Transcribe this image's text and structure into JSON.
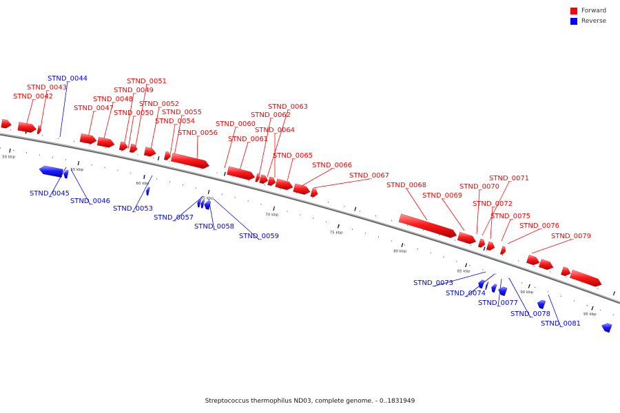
{
  "legend": [
    {
      "label": "Forward",
      "color": "#ff0000"
    },
    {
      "label": "Reverse",
      "color": "#0000ff"
    }
  ],
  "caption": "Streptococcus thermophilus ND03, complete genome. - 0..1831949",
  "colors": {
    "forward": "#ff0000",
    "reverse": "#0000ff",
    "backbone": "#888888"
  },
  "scale_labels": [
    "50 kbp",
    "55 kbp",
    "60 kbp",
    "65 kbp",
    "70 kbp",
    "75 kbp",
    "80 kbp",
    "85 kbp",
    "90 kbp",
    "95 kbp"
  ],
  "genes_forward": [
    "STND_0042",
    "STND_0043",
    "STND_0047",
    "STND_0048",
    "STND_0049",
    "STND_0050",
    "STND_0051",
    "STND_0052",
    "STND_0054",
    "STND_0055",
    "STND_0056",
    "STND_0060",
    "STND_0061",
    "STND_0062",
    "STND_0063",
    "STND_0064",
    "STND_0065",
    "STND_0066",
    "STND_0067",
    "STND_0068",
    "STND_0069",
    "STND_0070",
    "STND_0071",
    "STND_0072",
    "STND_0075",
    "STND_0076",
    "STND_0079"
  ],
  "genes_reverse": [
    "STND_0044",
    "STND_0045",
    "STND_0046",
    "STND_0053",
    "STND_0057",
    "STND_0058",
    "STND_0059",
    "STND_0073",
    "STND_0074",
    "STND_0077",
    "STND_0078",
    "STND_0081"
  ]
}
